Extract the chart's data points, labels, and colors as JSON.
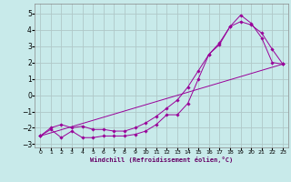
{
  "xlabel": "Windchill (Refroidissement éolien,°C)",
  "bg_color": "#c8eaea",
  "grid_color": "#b0c8c8",
  "line_color": "#990099",
  "xlim": [
    -0.5,
    23.5
  ],
  "ylim": [
    -3.2,
    5.6
  ],
  "xticks": [
    0,
    1,
    2,
    3,
    4,
    5,
    6,
    7,
    8,
    9,
    10,
    11,
    12,
    13,
    14,
    15,
    16,
    17,
    18,
    19,
    20,
    21,
    22,
    23
  ],
  "yticks": [
    -3,
    -2,
    -1,
    0,
    1,
    2,
    3,
    4,
    5
  ],
  "line1_x": [
    0,
    1,
    2,
    3,
    4,
    5,
    6,
    7,
    8,
    9,
    10,
    11,
    12,
    13,
    14,
    15,
    16,
    17,
    18,
    19,
    20,
    21,
    22,
    23
  ],
  "line1_y": [
    -2.5,
    -2.1,
    -2.6,
    -2.2,
    -2.6,
    -2.6,
    -2.5,
    -2.5,
    -2.5,
    -2.4,
    -2.2,
    -1.8,
    -1.2,
    -1.2,
    -0.5,
    1.0,
    2.5,
    3.1,
    4.2,
    4.9,
    4.4,
    3.5,
    2.0,
    1.9
  ],
  "line2_x": [
    0,
    1,
    2,
    3,
    4,
    5,
    6,
    7,
    8,
    9,
    10,
    11,
    12,
    13,
    14,
    15,
    16,
    17,
    18,
    19,
    20,
    21,
    22,
    23
  ],
  "line2_y": [
    -2.5,
    -2.0,
    -1.8,
    -2.0,
    -1.9,
    -2.1,
    -2.1,
    -2.2,
    -2.2,
    -2.0,
    -1.7,
    -1.3,
    -0.8,
    -0.3,
    0.5,
    1.5,
    2.5,
    3.2,
    4.2,
    4.5,
    4.3,
    3.8,
    2.8,
    1.9
  ],
  "line3_x": [
    0,
    23
  ],
  "line3_y": [
    -2.5,
    1.9
  ]
}
